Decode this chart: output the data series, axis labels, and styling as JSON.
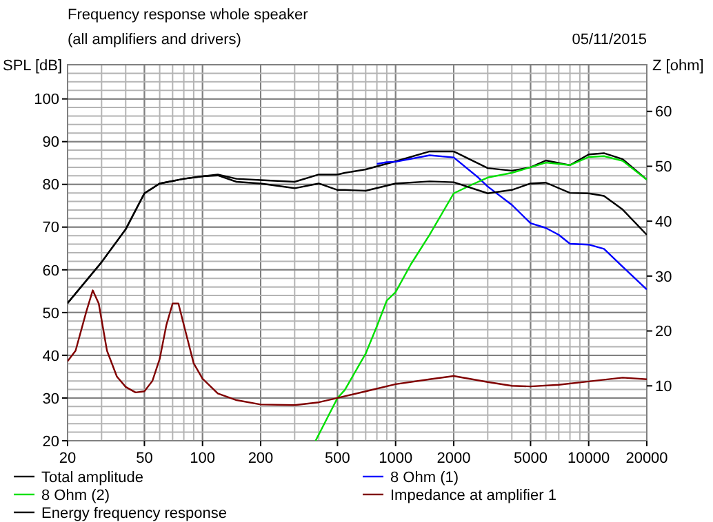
{
  "chart_data": {
    "type": "line",
    "title": "Frequency response whole speaker",
    "subtitle": "(all amplifiers and drivers)",
    "annotations": [
      "05/11/2015"
    ],
    "ylabel": "SPL [dB]",
    "y2label": "Z [ohm]",
    "log": "x",
    "xlim": [
      20,
      20000
    ],
    "xticks": [
      20,
      50,
      100,
      200,
      500,
      1000,
      2000,
      5000,
      10000,
      20000
    ],
    "ylim": [
      20,
      108
    ],
    "yticks": [
      20,
      30,
      40,
      50,
      60,
      70,
      80,
      90,
      100
    ],
    "y2lim": [
      0,
      68.5
    ],
    "y2ticks": [
      10,
      20,
      30,
      40,
      50,
      60
    ],
    "grid": true,
    "legend": "bottom",
    "line_style": "solid",
    "marker": "none",
    "series": [
      {
        "name": "Total amplitude",
        "color": "#000000",
        "x": [
          20,
          30,
          40,
          50,
          60,
          80,
          100,
          120,
          150,
          200,
          300,
          400,
          500,
          546,
          700,
          1000,
          1500,
          2000,
          3000,
          4000,
          5000,
          6000,
          8000,
          10000,
          12000,
          15000,
          20000
        ],
        "values": [
          52.2,
          61.8,
          69.5,
          77.9,
          80.2,
          81.3,
          81.9,
          82.3,
          81.3,
          81,
          80.6,
          82.3,
          82.3,
          82.7,
          83.5,
          85.4,
          87.7,
          87.7,
          83.8,
          83.2,
          84,
          85.6,
          84.5,
          87,
          87.3,
          85.9,
          81.1
        ]
      },
      {
        "name": "8 Ohm (1)",
        "color": "#0000ff",
        "x": [
          800,
          900,
          1000,
          1500,
          2000,
          2680,
          3000,
          4000,
          5000,
          6000,
          7000,
          8000,
          10000,
          12000,
          15000,
          20000
        ],
        "values": [
          84.8,
          85.2,
          85.3,
          86.8,
          86.3,
          81.6,
          79.5,
          75.2,
          70.9,
          69.8,
          68.2,
          66.1,
          65.9,
          64.9,
          60.7,
          55.4
        ]
      },
      {
        "name": "8 Ohm (2)",
        "color": "#00e000",
        "x": [
          385,
          500,
          546,
          700,
          800,
          900,
          1000,
          1200,
          1500,
          2000,
          2500,
          3000,
          4000,
          5000,
          6000,
          7000,
          8000,
          10000,
          12000,
          15000,
          20000
        ],
        "values": [
          20,
          30,
          31.9,
          40.4,
          46.8,
          52.8,
          54.8,
          61.3,
          68.2,
          77.9,
          80,
          81.6,
          82.7,
          84,
          85.1,
          84.8,
          84.5,
          86.4,
          86.6,
          85.5,
          81.1
        ]
      },
      {
        "name": "Impedance at amplifier 1",
        "color": "#800000",
        "axis": "y2",
        "x": [
          20,
          22,
          25,
          27,
          29,
          32,
          36,
          40,
          45,
          50,
          55,
          60,
          65,
          70,
          75,
          80,
          90,
          100,
          120,
          150,
          200,
          300,
          400,
          500,
          700,
          1000,
          1500,
          2000,
          3000,
          4000,
          5000,
          7000,
          10000,
          15000,
          20000
        ],
        "values": [
          14.5,
          16.4,
          23.5,
          27.4,
          25,
          16.4,
          11.7,
          9.8,
          8.8,
          9,
          10.9,
          14.9,
          21.1,
          25,
          25,
          21.1,
          14.1,
          11.3,
          8.6,
          7.4,
          6.6,
          6.5,
          7,
          7.8,
          9,
          10.3,
          11.2,
          11.8,
          10.7,
          10,
          9.9,
          10.2,
          10.8,
          11.5,
          11.2
        ]
      },
      {
        "name": "Energy frequency response",
        "color": "#000000",
        "x": [
          20,
          30,
          40,
          50,
          60,
          80,
          100,
          120,
          150,
          200,
          300,
          400,
          500,
          546,
          700,
          1000,
          1500,
          2000,
          3000,
          4000,
          5000,
          6000,
          8000,
          10000,
          12000,
          15000,
          20000
        ],
        "values": [
          52.2,
          61.8,
          69.5,
          77.9,
          80.2,
          81.3,
          81.9,
          82.1,
          80.6,
          80.2,
          79.1,
          80.2,
          78.7,
          78.7,
          78.5,
          80.2,
          80.7,
          80.5,
          77.9,
          78.7,
          80.2,
          80.4,
          78,
          77.9,
          77.3,
          74.1,
          68.2
        ]
      }
    ]
  }
}
